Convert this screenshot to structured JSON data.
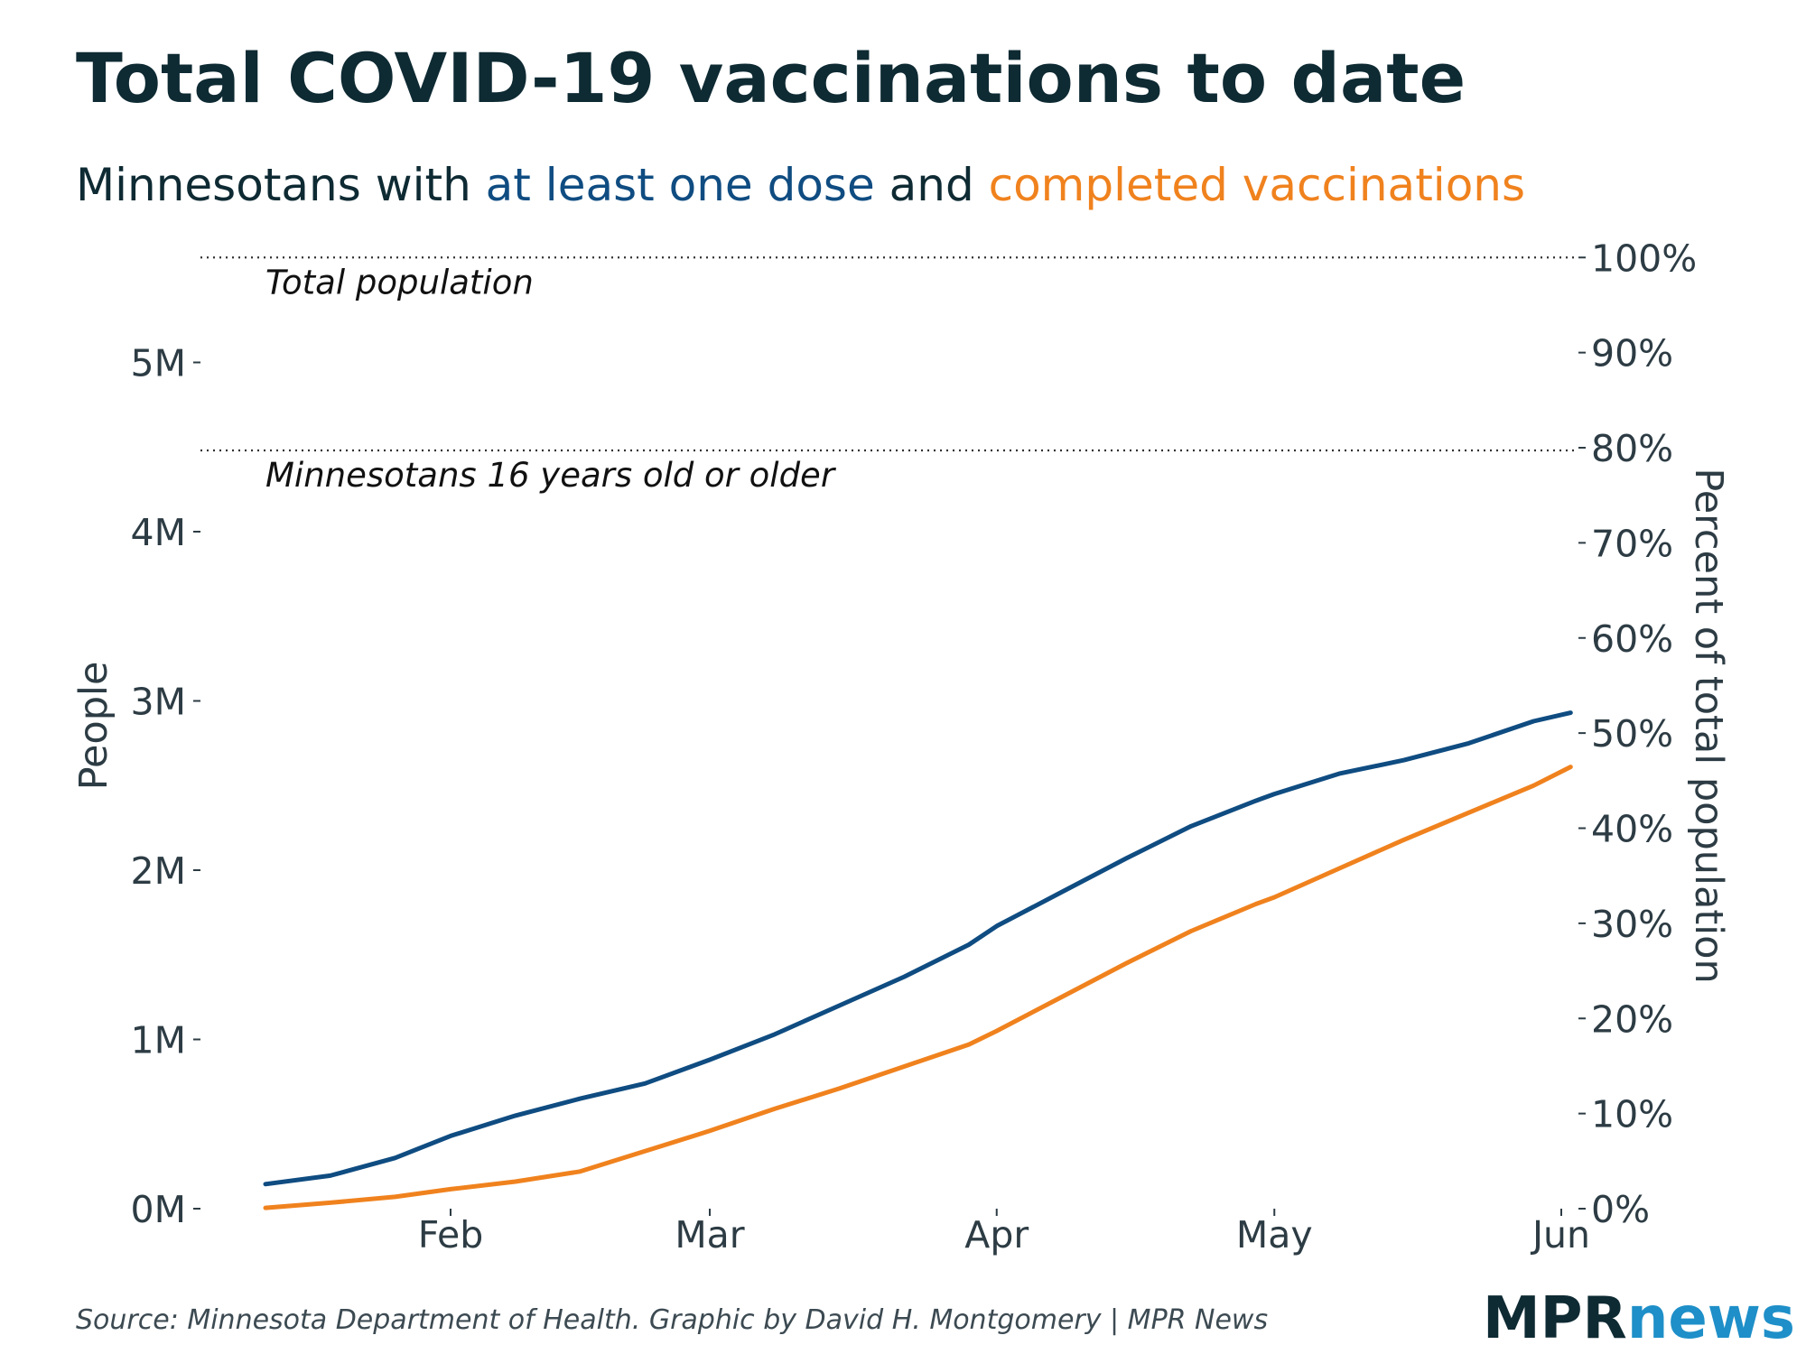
{
  "title": "Total COVID-19 vaccinations to date",
  "subtitle": {
    "prefix": "Minnesotans with ",
    "dose_phrase": "at least one dose",
    "middle": " and ",
    "complete_phrase": "completed vaccinations"
  },
  "source": "Source: Minnesota Department of Health. Graphic by David H. Montgomery | MPR News",
  "logo": {
    "part1": "MPR",
    "part2": "news"
  },
  "colors": {
    "title": "#0e2a33",
    "one_dose": "#0f4c81",
    "completed": "#f0821e",
    "axis_text": "#2d3c44",
    "logo_news": "#1e8fc8"
  },
  "chart_data": {
    "type": "line",
    "xlabel": "",
    "ylabel": "People",
    "ylabel_right": "Percent of total population",
    "x_range": [
      "2021-01-12",
      "2021-06-02"
    ],
    "x_ticks": [
      {
        "date": "2021-02-01",
        "label": "Feb"
      },
      {
        "date": "2021-03-01",
        "label": "Mar"
      },
      {
        "date": "2021-04-01",
        "label": "Apr"
      },
      {
        "date": "2021-05-01",
        "label": "May"
      },
      {
        "date": "2021-06-01",
        "label": "Jun"
      }
    ],
    "ylim": [
      0,
      5600000
    ],
    "y_ticks": [
      {
        "value": 0,
        "label": "0M"
      },
      {
        "value": 1000000,
        "label": "1M"
      },
      {
        "value": 2000000,
        "label": "2M"
      },
      {
        "value": 3000000,
        "label": "3M"
      },
      {
        "value": 4000000,
        "label": "4M"
      },
      {
        "value": 5000000,
        "label": "5M"
      }
    ],
    "y_right_ticks": [
      {
        "value": 0,
        "label": "0%"
      },
      {
        "value": 562000,
        "label": "10%"
      },
      {
        "value": 1124000,
        "label": "20%"
      },
      {
        "value": 1686000,
        "label": "30%"
      },
      {
        "value": 2248000,
        "label": "40%"
      },
      {
        "value": 2810000,
        "label": "50%"
      },
      {
        "value": 3372000,
        "label": "60%"
      },
      {
        "value": 3934000,
        "label": "70%"
      },
      {
        "value": 4496000,
        "label": "80%"
      },
      {
        "value": 5058000,
        "label": "90%"
      },
      {
        "value": 5620000,
        "label": "100%"
      }
    ],
    "reference_lines": [
      {
        "value": 5620000,
        "label": "Total population"
      },
      {
        "value": 4480000,
        "label": "Minnesotans 16 years old or older"
      }
    ],
    "grid": false,
    "series": [
      {
        "key": "one_dose",
        "points": [
          [
            "2021-01-12",
            145000
          ],
          [
            "2021-01-19",
            195000
          ],
          [
            "2021-01-26",
            300000
          ],
          [
            "2021-02-01",
            430000
          ],
          [
            "2021-02-08",
            550000
          ],
          [
            "2021-02-15",
            650000
          ],
          [
            "2021-02-22",
            740000
          ],
          [
            "2021-03-01",
            880000
          ],
          [
            "2021-03-08",
            1030000
          ],
          [
            "2021-03-15",
            1200000
          ],
          [
            "2021-03-22",
            1370000
          ],
          [
            "2021-03-29",
            1560000
          ],
          [
            "2021-04-01",
            1670000
          ],
          [
            "2021-04-08",
            1870000
          ],
          [
            "2021-04-15",
            2070000
          ],
          [
            "2021-04-22",
            2260000
          ],
          [
            "2021-04-29",
            2410000
          ],
          [
            "2021-05-01",
            2450000
          ],
          [
            "2021-05-08",
            2570000
          ],
          [
            "2021-05-15",
            2650000
          ],
          [
            "2021-05-22",
            2750000
          ],
          [
            "2021-05-29",
            2880000
          ],
          [
            "2021-06-02",
            2930000
          ]
        ]
      },
      {
        "key": "completed",
        "points": [
          [
            "2021-01-12",
            5000
          ],
          [
            "2021-01-19",
            35000
          ],
          [
            "2021-01-26",
            70000
          ],
          [
            "2021-02-01",
            115000
          ],
          [
            "2021-02-08",
            160000
          ],
          [
            "2021-02-15",
            220000
          ],
          [
            "2021-02-22",
            340000
          ],
          [
            "2021-03-01",
            460000
          ],
          [
            "2021-03-08",
            590000
          ],
          [
            "2021-03-15",
            710000
          ],
          [
            "2021-03-22",
            840000
          ],
          [
            "2021-03-29",
            970000
          ],
          [
            "2021-04-01",
            1050000
          ],
          [
            "2021-04-08",
            1250000
          ],
          [
            "2021-04-15",
            1450000
          ],
          [
            "2021-04-22",
            1640000
          ],
          [
            "2021-04-29",
            1800000
          ],
          [
            "2021-05-01",
            1840000
          ],
          [
            "2021-05-08",
            2010000
          ],
          [
            "2021-05-15",
            2180000
          ],
          [
            "2021-05-22",
            2340000
          ],
          [
            "2021-05-29",
            2500000
          ],
          [
            "2021-06-02",
            2610000
          ]
        ]
      }
    ]
  }
}
